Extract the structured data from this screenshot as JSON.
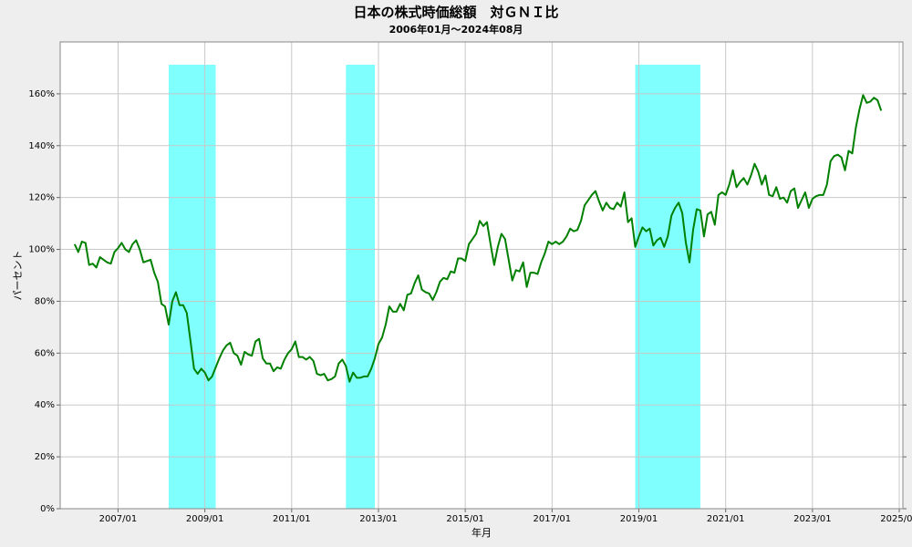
{
  "chart_data": {
    "type": "line",
    "title": "日本の株式時価総額　対ＧＮＩ比",
    "subtitle": "2006年01月～2024年08月",
    "x_label": "年月",
    "y_label": "パーセント",
    "color": "#008000",
    "band_color": "#80ffff",
    "grid": true,
    "shaded_periods": [
      [
        "2008/03",
        "2009/04"
      ],
      [
        "2012/04",
        "2012/12"
      ],
      [
        "2018/12",
        "2020/06"
      ]
    ],
    "xlim": [
      "2005/09",
      "2025/02"
    ],
    "xticks": [
      "2007/01",
      "2009/01",
      "2011/01",
      "2013/01",
      "2015/01",
      "2017/01",
      "2019/01",
      "2021/01",
      "2023/01",
      "2025/01"
    ],
    "ylim": [
      0,
      180
    ],
    "yticks": [
      {
        "value": 0,
        "label": "0%"
      },
      {
        "value": 20,
        "label": "20%"
      },
      {
        "value": 40,
        "label": "40%"
      },
      {
        "value": 60,
        "label": "60%"
      },
      {
        "value": 80,
        "label": "80%"
      },
      {
        "value": 100,
        "label": "100%"
      },
      {
        "value": 120,
        "label": "120%"
      },
      {
        "value": 140,
        "label": "140%"
      },
      {
        "value": 160,
        "label": "160%"
      }
    ],
    "x": [
      "2006/01",
      "2006/02",
      "2006/03",
      "2006/04",
      "2006/05",
      "2006/06",
      "2006/07",
      "2006/08",
      "2006/09",
      "2006/10",
      "2006/11",
      "2006/12",
      "2007/01",
      "2007/02",
      "2007/03",
      "2007/04",
      "2007/05",
      "2007/06",
      "2007/07",
      "2007/08",
      "2007/09",
      "2007/10",
      "2007/11",
      "2007/12",
      "2008/01",
      "2008/02",
      "2008/03",
      "2008/04",
      "2008/05",
      "2008/06",
      "2008/07",
      "2008/08",
      "2008/09",
      "2008/10",
      "2008/11",
      "2008/12",
      "2009/01",
      "2009/02",
      "2009/03",
      "2009/04",
      "2009/05",
      "2009/06",
      "2009/07",
      "2009/08",
      "2009/09",
      "2009/10",
      "2009/11",
      "2009/12",
      "2010/01",
      "2010/02",
      "2010/03",
      "2010/04",
      "2010/05",
      "2010/06",
      "2010/07",
      "2010/08",
      "2010/09",
      "2010/10",
      "2010/11",
      "2010/12",
      "2011/01",
      "2011/02",
      "2011/03",
      "2011/04",
      "2011/05",
      "2011/06",
      "2011/07",
      "2011/08",
      "2011/09",
      "2011/10",
      "2011/11",
      "2011/12",
      "2012/01",
      "2012/02",
      "2012/03",
      "2012/04",
      "2012/05",
      "2012/06",
      "2012/07",
      "2012/08",
      "2012/09",
      "2012/10",
      "2012/11",
      "2012/12",
      "2013/01",
      "2013/02",
      "2013/03",
      "2013/04",
      "2013/05",
      "2013/06",
      "2013/07",
      "2013/08",
      "2013/09",
      "2013/10",
      "2013/11",
      "2013/12",
      "2014/01",
      "2014/02",
      "2014/03",
      "2014/04",
      "2014/05",
      "2014/06",
      "2014/07",
      "2014/08",
      "2014/09",
      "2014/10",
      "2014/11",
      "2014/12",
      "2015/01",
      "2015/02",
      "2015/03",
      "2015/04",
      "2015/05",
      "2015/06",
      "2015/07",
      "2015/08",
      "2015/09",
      "2015/10",
      "2015/11",
      "2015/12",
      "2016/01",
      "2016/02",
      "2016/03",
      "2016/04",
      "2016/05",
      "2016/06",
      "2016/07",
      "2016/08",
      "2016/09",
      "2016/10",
      "2016/11",
      "2016/12",
      "2017/01",
      "2017/02",
      "2017/03",
      "2017/04",
      "2017/05",
      "2017/06",
      "2017/07",
      "2017/08",
      "2017/09",
      "2017/10",
      "2017/11",
      "2017/12",
      "2018/01",
      "2018/02",
      "2018/03",
      "2018/04",
      "2018/05",
      "2018/06",
      "2018/07",
      "2018/08",
      "2018/09",
      "2018/10",
      "2018/11",
      "2018/12",
      "2019/01",
      "2019/02",
      "2019/03",
      "2019/04",
      "2019/05",
      "2019/06",
      "2019/07",
      "2019/08",
      "2019/09",
      "2019/10",
      "2019/11",
      "2019/12",
      "2020/01",
      "2020/02",
      "2020/03",
      "2020/04",
      "2020/05",
      "2020/06",
      "2020/07",
      "2020/08",
      "2020/09",
      "2020/10",
      "2020/11",
      "2020/12",
      "2021/01",
      "2021/02",
      "2021/03",
      "2021/04",
      "2021/05",
      "2021/06",
      "2021/07",
      "2021/08",
      "2021/09",
      "2021/10",
      "2021/11",
      "2021/12",
      "2022/01",
      "2022/02",
      "2022/03",
      "2022/04",
      "2022/05",
      "2022/06",
      "2022/07",
      "2022/08",
      "2022/09",
      "2022/10",
      "2022/11",
      "2022/12",
      "2023/01",
      "2023/02",
      "2023/03",
      "2023/04",
      "2023/05",
      "2023/06",
      "2023/07",
      "2023/08",
      "2023/09",
      "2023/10",
      "2023/11",
      "2023/12",
      "2024/01",
      "2024/02",
      "2024/03",
      "2024/04",
      "2024/05",
      "2024/06",
      "2024/07",
      "2024/08"
    ],
    "values": [
      102,
      99,
      103,
      102.5,
      94,
      94.5,
      93,
      97,
      96,
      95,
      94.5,
      99,
      100.5,
      102.5,
      100,
      99,
      102,
      103.5,
      100,
      95,
      95.5,
      96,
      91,
      87.5,
      79,
      78,
      71,
      80,
      83.5,
      78.5,
      78.5,
      75.5,
      65,
      54,
      52,
      54,
      52.5,
      49.5,
      51,
      54.5,
      58,
      61,
      63,
      64,
      60,
      59,
      55.5,
      60.5,
      59.5,
      59,
      64.5,
      65.5,
      58,
      56,
      56,
      53,
      54.5,
      54,
      57.5,
      60,
      61.5,
      64.5,
      58.5,
      58.5,
      57.5,
      58.5,
      57,
      52,
      51.5,
      52,
      49.5,
      50,
      51,
      56,
      57.5,
      55,
      49,
      52.5,
      50.5,
      50.5,
      51,
      51,
      54,
      58,
      63.5,
      66,
      71,
      78,
      76,
      76,
      79,
      76.5,
      82.5,
      83,
      87,
      90,
      84.5,
      83.5,
      83,
      80.5,
      83.5,
      87.5,
      89,
      88.5,
      91.5,
      91,
      96.5,
      96.5,
      95.5,
      102,
      104,
      106,
      111,
      109,
      110.5,
      102,
      94,
      101,
      106,
      104,
      96,
      88,
      92,
      91.5,
      95,
      85.5,
      91,
      91,
      90.5,
      95,
      98.5,
      103,
      102,
      103,
      102,
      103,
      105,
      108,
      107,
      107.5,
      111,
      117,
      119,
      121,
      122.5,
      118.5,
      115,
      118,
      116,
      115.5,
      118,
      116.5,
      122,
      110.5,
      112,
      101,
      105,
      108.5,
      107,
      108,
      101.5,
      103.5,
      104.5,
      101,
      105,
      113,
      116,
      118,
      114,
      102.5,
      95,
      107.5,
      115.5,
      115,
      105,
      113.5,
      114.5,
      109.5,
      121,
      122,
      121,
      125,
      130.5,
      124,
      126,
      127.5,
      125,
      128.5,
      133,
      130,
      125,
      128.5,
      121,
      120.5,
      124,
      119.5,
      120,
      118,
      122.5,
      123.5,
      116,
      119,
      122,
      116,
      119.5,
      120.5,
      121,
      121,
      125,
      134,
      136,
      136.5,
      135.5,
      130.5,
      138,
      137,
      147,
      154,
      159.5,
      156.5,
      157,
      158.5,
      157.5,
      153.5
    ]
  }
}
